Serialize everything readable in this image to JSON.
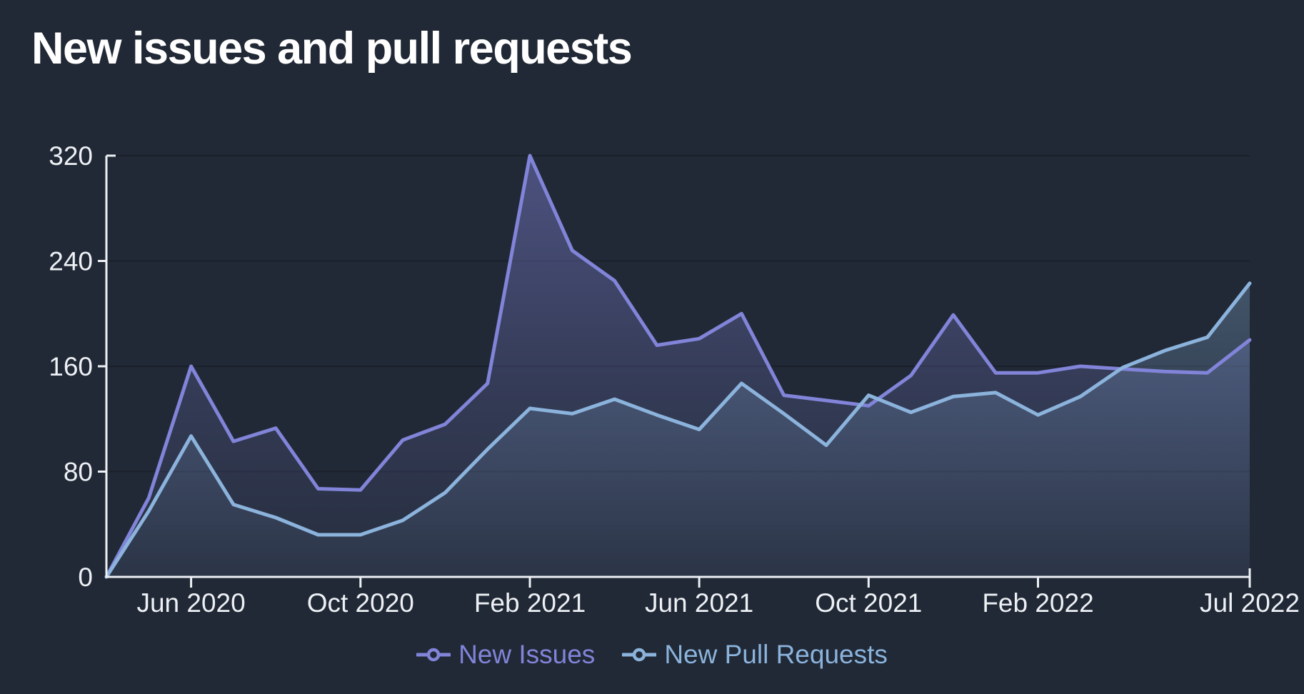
{
  "title": "New issues and pull requests",
  "colors": {
    "background": "#212936",
    "gridline": "#1A202B",
    "axis": "#EDF0F4",
    "text": "#EDF0F4",
    "title_text": "#FFFFFF",
    "new_issues": "#8184D8",
    "new_pull_requests": "#8BB3DC"
  },
  "chart_data": {
    "type": "area",
    "title": "New issues and pull requests",
    "x_unit": "month",
    "categories": [
      "Apr 2020",
      "May 2020",
      "Jun 2020",
      "Jul 2020",
      "Aug 2020",
      "Sep 2020",
      "Oct 2020",
      "Nov 2020",
      "Dec 2020",
      "Jan 2021",
      "Feb 2021",
      "Mar 2021",
      "Apr 2021",
      "May 2021",
      "Jun 2021",
      "Jul 2021",
      "Aug 2021",
      "Sep 2021",
      "Oct 2021",
      "Nov 2021",
      "Dec 2021",
      "Jan 2022",
      "Feb 2022",
      "Mar 2022",
      "Apr 2022",
      "May 2022",
      "Jun 2022",
      "Jul 2022"
    ],
    "series": [
      {
        "name": "New Issues",
        "color": "#8184D8",
        "values": [
          0,
          60,
          160,
          103,
          113,
          67,
          66,
          104,
          116,
          147,
          320,
          248,
          225,
          176,
          181,
          200,
          138,
          134,
          130,
          153,
          199,
          155,
          155,
          160,
          158,
          156,
          155,
          180
        ]
      },
      {
        "name": "New Pull Requests",
        "color": "#8BB3DC",
        "values": [
          0,
          50,
          107,
          55,
          45,
          32,
          32,
          43,
          64,
          97,
          128,
          124,
          135,
          123,
          112,
          147,
          124,
          100,
          138,
          125,
          137,
          140,
          123,
          137,
          159,
          172,
          182,
          223
        ]
      }
    ],
    "x_tick_labels": [
      "Jun 2020",
      "Oct 2020",
      "Feb 2021",
      "Jun 2021",
      "Oct 2021",
      "Feb 2022",
      "Jul 2022"
    ],
    "x_tick_indices": [
      2,
      6,
      10,
      14,
      18,
      22,
      27
    ],
    "y_ticks": [
      0,
      80,
      160,
      240,
      320
    ],
    "ylim": [
      0,
      320
    ],
    "grid": "horizontal-only",
    "legend_position": "bottom"
  },
  "legend": {
    "items": [
      {
        "label": "New Issues"
      },
      {
        "label": "New Pull Requests"
      }
    ]
  }
}
